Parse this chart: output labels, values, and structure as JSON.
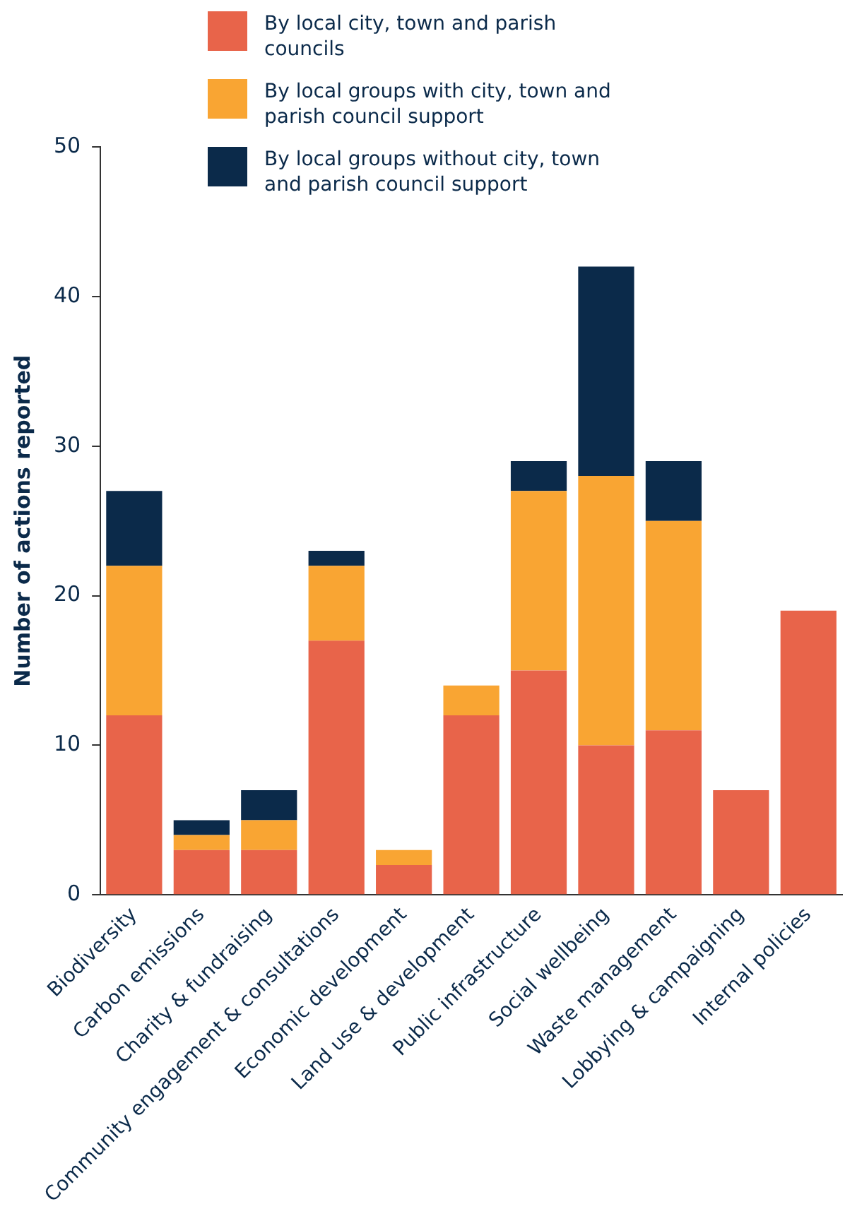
{
  "chart_data": {
    "type": "bar",
    "stacked": true,
    "ylabel": "Number of actions reported",
    "categories": [
      "Biodiversity",
      "Carbon emissions",
      "Charity & fundraising",
      "Community engagement & consultations",
      "Economic development",
      "Land use & development",
      "Public infrastructure",
      "Social wellbeing",
      "Waste management",
      "Lobbying & campaigning",
      "Internal policies"
    ],
    "series": [
      {
        "name": "By local city, town and parish councils",
        "color": "#e8644a",
        "values": [
          12,
          3,
          3,
          17,
          2,
          12,
          15,
          10,
          11,
          7,
          19
        ]
      },
      {
        "name": "By local groups with city, town and parish council support",
        "color": "#f9a533",
        "values": [
          10,
          1,
          2,
          5,
          1,
          2,
          12,
          18,
          14,
          0,
          0
        ]
      },
      {
        "name": "By local groups without city, town and parish council support",
        "color": "#0b2a4a",
        "values": [
          5,
          1,
          2,
          1,
          0,
          0,
          2,
          14,
          4,
          0,
          0
        ]
      }
    ],
    "ylim": [
      0,
      50
    ],
    "yticks": [
      0,
      10,
      20,
      30,
      40,
      50
    ],
    "grid": false,
    "legend": "top"
  }
}
